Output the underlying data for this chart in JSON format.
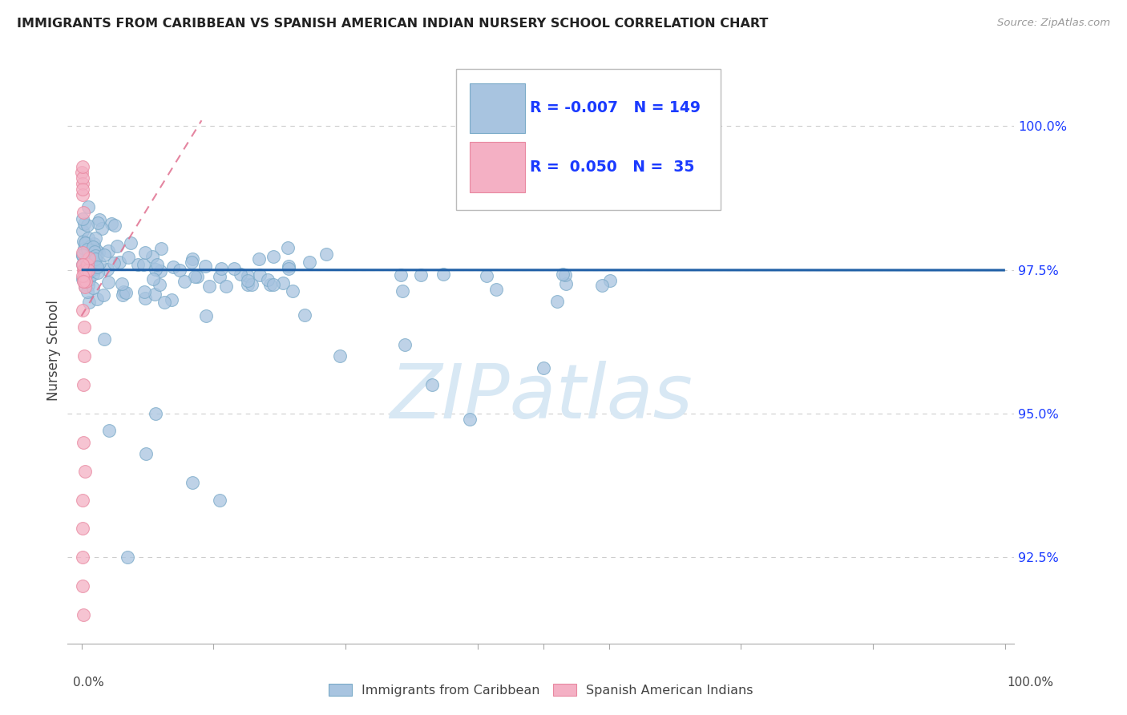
{
  "title": "IMMIGRANTS FROM CARIBBEAN VS SPANISH AMERICAN INDIAN NURSERY SCHOOL CORRELATION CHART",
  "source": "Source: ZipAtlas.com",
  "ylabel": "Nursery School",
  "yticks": [
    92.5,
    95.0,
    97.5,
    100.0
  ],
  "ytick_labels": [
    "92.5%",
    "95.0%",
    "97.5%",
    "100.0%"
  ],
  "legend_blue_r": "-0.007",
  "legend_blue_n": "149",
  "legend_pink_r": "0.050",
  "legend_pink_n": "35",
  "legend_label_blue": "Immigrants from Caribbean",
  "legend_label_pink": "Spanish American Indians",
  "blue_color": "#a8c4e0",
  "blue_edge_color": "#7aaac8",
  "pink_color": "#f4b0c4",
  "pink_edge_color": "#e888a0",
  "blue_line_color": "#1f5fa6",
  "pink_line_color": "#e07090",
  "text_blue": "#1a3aff",
  "grid_color": "#c8c8c8",
  "watermark": "ZIPatlas",
  "watermark_color": "#d8e8f4",
  "ymin": 91.0,
  "ymax": 101.2,
  "xmin": 0.0,
  "xmax": 100.0
}
